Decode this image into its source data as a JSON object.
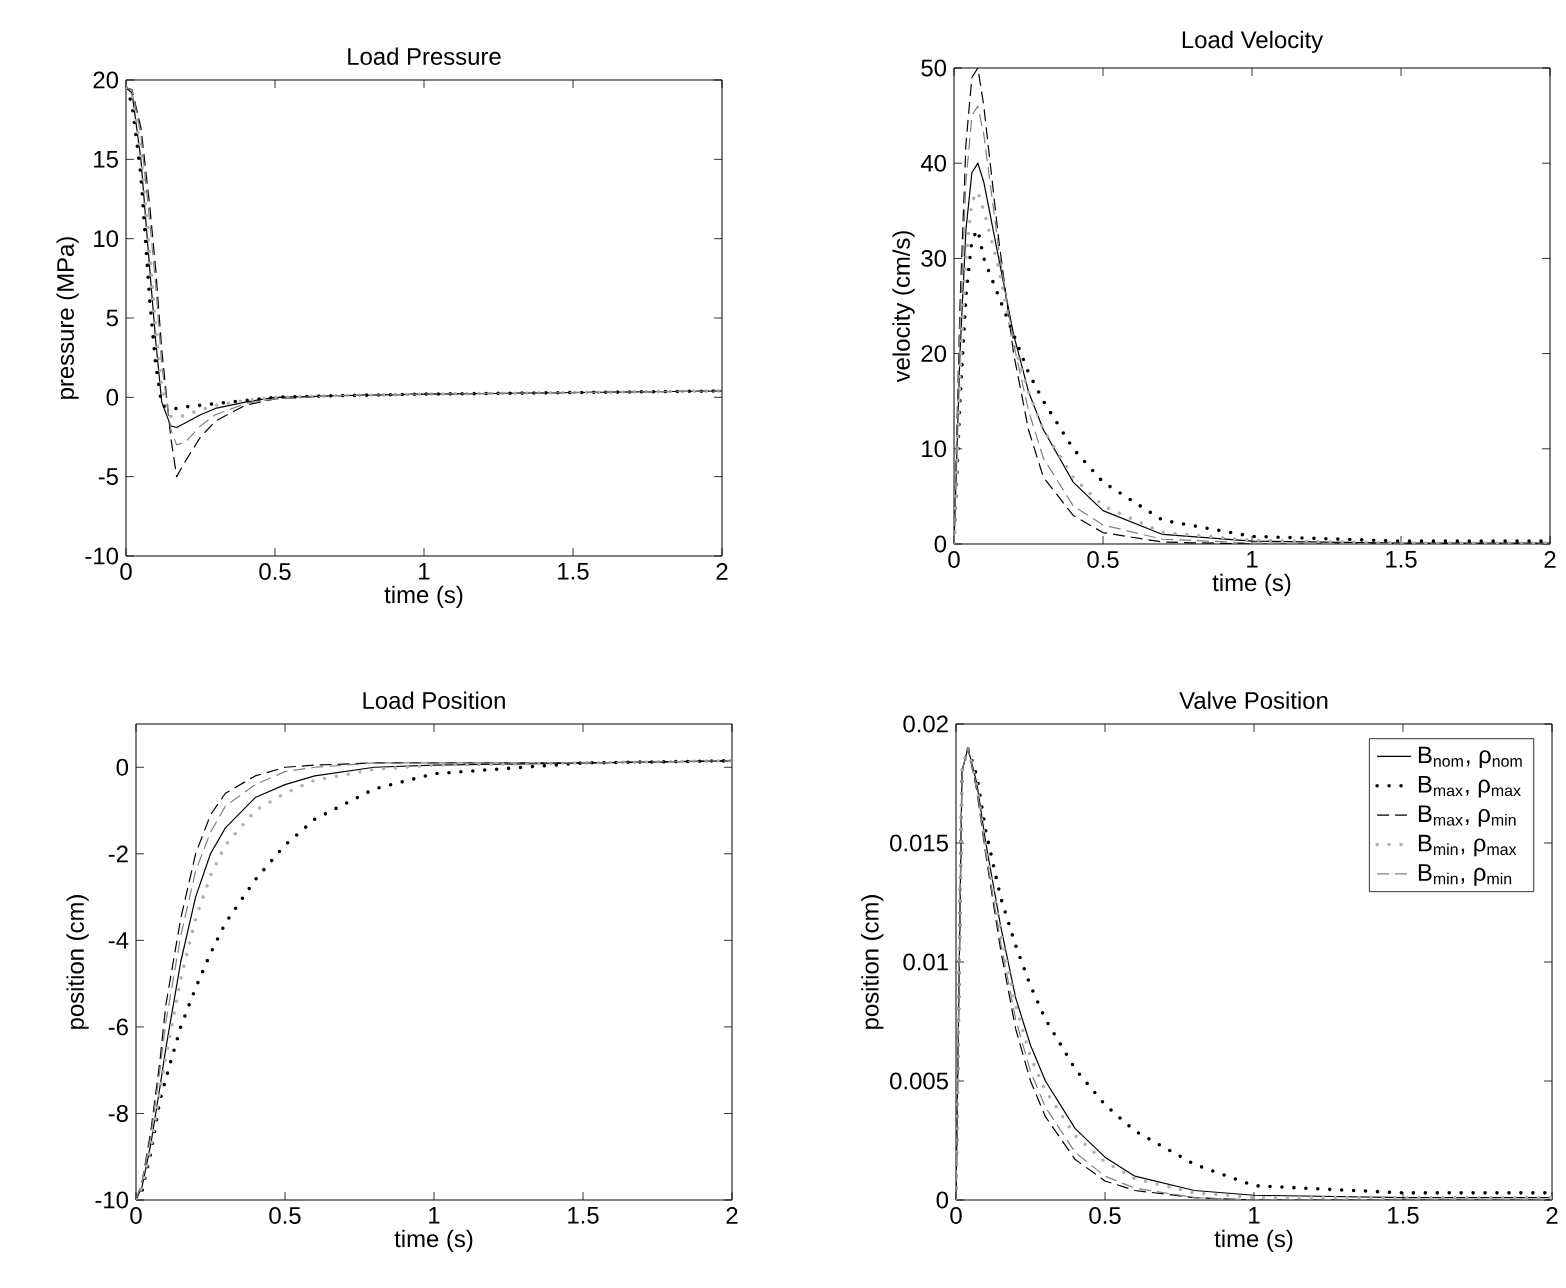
{
  "chart_data": [
    {
      "type": "line",
      "title": "Load Pressure",
      "xlabel": "time (s)",
      "ylabel": "pressure (MPa)",
      "xlim": [
        0,
        2
      ],
      "ylim": [
        -10,
        20
      ],
      "xticks": [
        0,
        0.5,
        1,
        1.5,
        2
      ],
      "yticks": [
        -10,
        -5,
        0,
        5,
        10,
        15,
        20
      ],
      "grid": false,
      "legend": false,
      "marker": "none",
      "x": [
        0,
        0.02,
        0.05,
        0.08,
        0.1,
        0.12,
        0.15,
        0.17,
        0.2,
        0.25,
        0.3,
        0.4,
        0.5,
        0.7,
        1,
        1.5,
        2
      ],
      "series": [
        {
          "color": "#000000",
          "line_style": "solid",
          "values": [
            19.5,
            19.2,
            15,
            8,
            3.5,
            -0.3,
            -1.8,
            -1.9,
            -1.6,
            -1.1,
            -0.7,
            -0.3,
            0,
            0.1,
            0.2,
            0.3,
            0.4
          ]
        },
        {
          "color": "#000000",
          "line_style": "dotted",
          "values": [
            19.5,
            18.5,
            14,
            6,
            2,
            -0.5,
            -0.7,
            -0.7,
            -0.6,
            -0.5,
            -0.4,
            -0.2,
            0,
            0.1,
            0.2,
            0.3,
            0.4
          ]
        },
        {
          "color": "#000000",
          "line_style": "dashed",
          "values": [
            19.5,
            19.4,
            17,
            12,
            8,
            3,
            -2.5,
            -5,
            -4,
            -2.5,
            -1.5,
            -0.5,
            -0.1,
            0.1,
            0.2,
            0.3,
            0.4
          ]
        },
        {
          "color": "#b0b0b0",
          "line_style": "dotted",
          "values": [
            19.5,
            19.2,
            15.5,
            9,
            4.5,
            0.5,
            -1.2,
            -1.3,
            -1.1,
            -0.8,
            -0.5,
            -0.2,
            0,
            0.1,
            0.2,
            0.3,
            0.4
          ]
        },
        {
          "color": "#808080",
          "line_style": "dashed",
          "values": [
            19.5,
            19.4,
            16.5,
            11,
            7,
            2,
            -2,
            -3,
            -2.8,
            -1.8,
            -1.1,
            -0.4,
            -0.1,
            0.1,
            0.2,
            0.3,
            0.4
          ]
        }
      ]
    },
    {
      "type": "line",
      "title": "Load Velocity",
      "xlabel": "time (s)",
      "ylabel": "velocity (cm/s)",
      "xlim": [
        0,
        2
      ],
      "ylim": [
        0,
        50
      ],
      "xticks": [
        0,
        0.5,
        1,
        1.5,
        2
      ],
      "yticks": [
        0,
        10,
        20,
        30,
        40,
        50
      ],
      "grid": false,
      "legend": false,
      "marker": "none",
      "x": [
        0,
        0.02,
        0.04,
        0.06,
        0.08,
        0.1,
        0.15,
        0.2,
        0.25,
        0.3,
        0.4,
        0.5,
        0.7,
        1,
        1.5,
        2
      ],
      "series": [
        {
          "color": "#000000",
          "line_style": "solid",
          "values": [
            0,
            20,
            33,
            39,
            40,
            38,
            30,
            22,
            16,
            12,
            6.5,
            3.5,
            1,
            0.3,
            0.1,
            0.1
          ]
        },
        {
          "color": "#000000",
          "line_style": "dotted",
          "values": [
            0,
            15,
            26,
            32,
            33,
            30,
            26,
            22,
            18,
            15,
            10,
            6.5,
            2.5,
            0.8,
            0.3,
            0.3
          ]
        },
        {
          "color": "#000000",
          "line_style": "dashed",
          "values": [
            0,
            25,
            42,
            49,
            50,
            46,
            32,
            20,
            12,
            7,
            3,
            1.2,
            0.2,
            0,
            0,
            0
          ]
        },
        {
          "color": "#b0b0b0",
          "line_style": "dotted",
          "values": [
            0,
            18,
            30,
            36,
            37,
            35,
            29,
            21,
            16,
            12,
            7,
            4,
            1.2,
            0.4,
            0.1,
            0.1
          ]
        },
        {
          "color": "#808080",
          "line_style": "dashed",
          "values": [
            0,
            23,
            38,
            45,
            46,
            43,
            31,
            21,
            14,
            9,
            4,
            2,
            0.5,
            0.1,
            0,
            0
          ]
        }
      ]
    },
    {
      "type": "line",
      "title": "Load Position",
      "xlabel": "time (s)",
      "ylabel": "position (cm)",
      "xlim": [
        0,
        2
      ],
      "ylim": [
        -10,
        1
      ],
      "xticks": [
        0,
        0.5,
        1,
        1.5,
        2
      ],
      "yticks": [
        -10,
        -8,
        -6,
        -4,
        -2,
        0
      ],
      "grid": false,
      "legend": false,
      "marker": "none",
      "x": [
        0,
        0.02,
        0.05,
        0.08,
        0.1,
        0.15,
        0.2,
        0.25,
        0.3,
        0.4,
        0.5,
        0.6,
        0.8,
        1,
        1.5,
        2
      ],
      "series": [
        {
          "color": "#000000",
          "line_style": "solid",
          "values": [
            -10,
            -9.7,
            -8.7,
            -7.4,
            -6.5,
            -4.5,
            -3,
            -2,
            -1.4,
            -0.7,
            -0.4,
            -0.2,
            0,
            0.05,
            0.1,
            0.15
          ]
        },
        {
          "color": "#000000",
          "line_style": "dotted",
          "values": [
            -10,
            -9.8,
            -8.9,
            -7.7,
            -7.2,
            -6,
            -5.1,
            -4.3,
            -3.6,
            -2.6,
            -1.8,
            -1.2,
            -0.5,
            -0.15,
            0.1,
            0.15
          ]
        },
        {
          "color": "#000000",
          "line_style": "dashed",
          "values": [
            -10,
            -9.6,
            -8.4,
            -6.8,
            -5.5,
            -3.5,
            -2,
            -1.1,
            -0.6,
            -0.2,
            0,
            0.05,
            0.1,
            0.1,
            0.1,
            0.15
          ]
        },
        {
          "color": "#b0b0b0",
          "line_style": "dotted",
          "values": [
            -10,
            -9.7,
            -8.8,
            -7.5,
            -6.7,
            -4.9,
            -3.5,
            -2.5,
            -1.8,
            -1,
            -0.6,
            -0.3,
            -0.05,
            0.05,
            0.1,
            0.15
          ]
        },
        {
          "color": "#808080",
          "line_style": "dashed",
          "values": [
            -10,
            -9.6,
            -8.5,
            -7,
            -5.9,
            -3.9,
            -2.4,
            -1.5,
            -0.9,
            -0.4,
            -0.1,
            0,
            0.1,
            0.1,
            0.1,
            0.15
          ]
        }
      ]
    },
    {
      "type": "line",
      "title": "Valve Position",
      "xlabel": "time (s)",
      "ylabel": "position (cm)",
      "xlim": [
        0,
        2
      ],
      "ylim": [
        0,
        0.02
      ],
      "xticks": [
        0,
        0.5,
        1,
        1.5,
        2
      ],
      "yticks": [
        0,
        0.005,
        0.01,
        0.015,
        0.02
      ],
      "grid": false,
      "legend": "top right",
      "marker": "none",
      "x": [
        0,
        0.02,
        0.04,
        0.07,
        0.1,
        0.15,
        0.2,
        0.25,
        0.3,
        0.4,
        0.5,
        0.6,
        0.8,
        1,
        1.5,
        2
      ],
      "series": [
        {
          "name": "B$_{nom}$, ρ$_{nom}$",
          "color": "#000000",
          "line_style": "solid",
          "values": [
            0,
            0.018,
            0.019,
            0.0175,
            0.015,
            0.0115,
            0.0085,
            0.0065,
            0.005,
            0.003,
            0.0018,
            0.001,
            0.0004,
            0.0002,
            0.0001,
            0.0001
          ]
        },
        {
          "name": "B$_{max}$, ρ$_{max}$",
          "color": "#000000",
          "line_style": "dotted",
          "values": [
            0,
            0.018,
            0.019,
            0.0178,
            0.0155,
            0.0127,
            0.0107,
            0.009,
            0.0076,
            0.0055,
            0.004,
            0.0029,
            0.0015,
            0.0006,
            0.0003,
            0.0003
          ]
        },
        {
          "name": "B$_{max}$, ρ$_{min}$",
          "color": "#000000",
          "line_style": "dashed",
          "values": [
            0,
            0.018,
            0.019,
            0.0172,
            0.0145,
            0.0105,
            0.0072,
            0.005,
            0.0035,
            0.0017,
            0.0008,
            0.0004,
            0.0001,
            0,
            0,
            0
          ]
        },
        {
          "name": "B$_{min}$, ρ$_{max}$",
          "color": "#b0b0b0",
          "line_style": "dotted",
          "values": [
            0,
            0.018,
            0.019,
            0.0174,
            0.0148,
            0.0112,
            0.0082,
            0.006,
            0.0046,
            0.0027,
            0.0016,
            0.0009,
            0.0003,
            0.0001,
            0.0001,
            0.0001
          ]
        },
        {
          "name": "B$_{min}$, ρ$_{min}$",
          "color": "#808080",
          "line_style": "dashed",
          "values": [
            0,
            0.018,
            0.019,
            0.0173,
            0.0146,
            0.0108,
            0.0076,
            0.0054,
            0.0039,
            0.002,
            0.001,
            0.0005,
            0.0001,
            0,
            0,
            0
          ]
        }
      ]
    }
  ]
}
